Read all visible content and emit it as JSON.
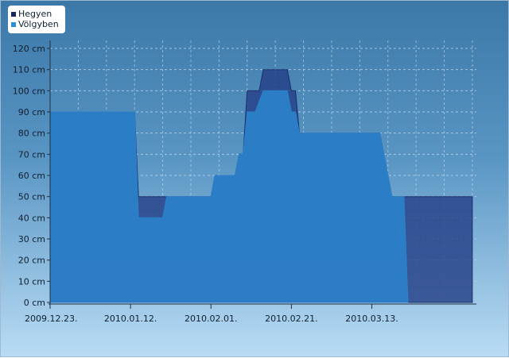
{
  "legend": {
    "items": [
      {
        "label": "Hegyen",
        "color": "#14285e"
      },
      {
        "label": "Völgyben",
        "color": "#2e8fd0"
      }
    ]
  },
  "chart_data": {
    "type": "area",
    "title": "",
    "xlabel": "",
    "ylabel": "",
    "y_unit": "cm",
    "ylim": [
      0,
      120
    ],
    "yticks": [
      0,
      10,
      20,
      30,
      40,
      50,
      60,
      70,
      80,
      90,
      100,
      110,
      120
    ],
    "xlim": [
      "2009-12-23",
      "2010-04-08"
    ],
    "xticks": [
      {
        "date": "2009-12-23",
        "label": "2009.12.23."
      },
      {
        "date": "2010-01-12",
        "label": "2010.01.12."
      },
      {
        "date": "2010-02-01",
        "label": "2010.02.01."
      },
      {
        "date": "2010-02-21",
        "label": "2010.02.21."
      },
      {
        "date": "2010-03-13",
        "label": "2010.03.13."
      }
    ],
    "grid": true,
    "legend_position": "top-left",
    "series": [
      {
        "name": "Hegyen",
        "color": "#243f86",
        "points": [
          [
            "2009-12-23",
            90
          ],
          [
            "2010-01-13",
            90
          ],
          [
            "2010-01-14",
            50
          ],
          [
            "2010-02-01",
            50
          ],
          [
            "2010-02-02",
            60
          ],
          [
            "2010-02-07",
            60
          ],
          [
            "2010-02-08",
            70
          ],
          [
            "2010-02-09",
            70
          ],
          [
            "2010-02-10",
            100
          ],
          [
            "2010-02-13",
            100
          ],
          [
            "2010-02-14",
            110
          ],
          [
            "2010-02-20",
            110
          ],
          [
            "2010-02-21",
            100
          ],
          [
            "2010-02-22",
            100
          ],
          [
            "2010-02-23",
            80
          ],
          [
            "2010-03-15",
            80
          ],
          [
            "2010-03-18",
            50
          ],
          [
            "2010-04-07",
            50
          ],
          [
            "2010-04-07",
            0
          ]
        ]
      },
      {
        "name": "Völgyben",
        "color": "#2b80c8",
        "points": [
          [
            "2009-12-23",
            90
          ],
          [
            "2010-01-13",
            90
          ],
          [
            "2010-01-14",
            40
          ],
          [
            "2010-01-20",
            40
          ],
          [
            "2010-01-21",
            50
          ],
          [
            "2010-02-01",
            50
          ],
          [
            "2010-02-02",
            60
          ],
          [
            "2010-02-07",
            60
          ],
          [
            "2010-02-08",
            70
          ],
          [
            "2010-02-09",
            70
          ],
          [
            "2010-02-10",
            90
          ],
          [
            "2010-02-12",
            90
          ],
          [
            "2010-02-14",
            100
          ],
          [
            "2010-02-20",
            100
          ],
          [
            "2010-02-21",
            90
          ],
          [
            "2010-02-22",
            90
          ],
          [
            "2010-02-23",
            80
          ],
          [
            "2010-03-15",
            80
          ],
          [
            "2010-03-18",
            50
          ],
          [
            "2010-03-21",
            50
          ],
          [
            "2010-03-22",
            0
          ]
        ]
      }
    ]
  }
}
